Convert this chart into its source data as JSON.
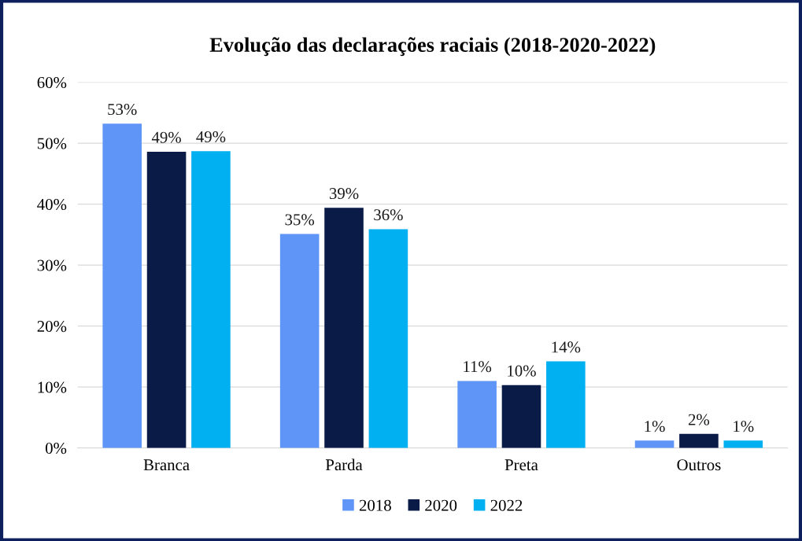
{
  "chart_data": {
    "type": "bar",
    "title": "Evolução das declarações raciais (2018-2020-2022)",
    "categories": [
      "Branca",
      "Parda",
      "Preta",
      "Outros"
    ],
    "series": [
      {
        "name": "2018",
        "color": "#6095f8",
        "values": [
          53.2,
          35.1,
          11.0,
          1.2
        ],
        "value_labels": [
          "53%",
          "35%",
          "11%",
          "1%"
        ]
      },
      {
        "name": "2020",
        "color": "#0b1b48",
        "values": [
          48.6,
          39.4,
          10.3,
          2.3
        ],
        "value_labels": [
          "49%",
          "39%",
          "10%",
          "2%"
        ]
      },
      {
        "name": "2022",
        "color": "#00b0f0",
        "values": [
          48.7,
          35.9,
          14.2,
          1.2
        ],
        "value_labels": [
          "49%",
          "36%",
          "14%",
          "1%"
        ]
      }
    ],
    "ylim": [
      0,
      60
    ],
    "yticks": [
      {
        "value": 0,
        "label": "0%"
      },
      {
        "value": 10,
        "label": "10%"
      },
      {
        "value": 20,
        "label": "20%"
      },
      {
        "value": 30,
        "label": "30%"
      },
      {
        "value": 40,
        "label": "40%"
      },
      {
        "value": 50,
        "label": "50%"
      },
      {
        "value": 60,
        "label": "60%"
      }
    ],
    "grid": "y",
    "legend": "bottom"
  }
}
